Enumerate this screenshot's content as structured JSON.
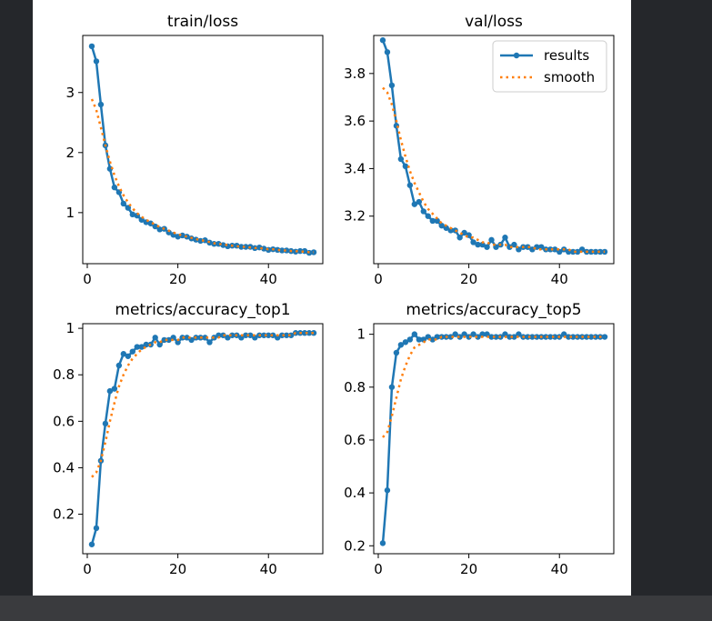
{
  "colors": {
    "results": "#1f77b4",
    "smooth": "#ff7f0e"
  },
  "chart_data": [
    {
      "type": "line",
      "title": "train/loss",
      "xlim": [
        -1,
        52
      ],
      "ylim": [
        0.15,
        3.95
      ],
      "xticks": [
        0,
        20,
        40
      ],
      "yticks": [
        1,
        2,
        3
      ],
      "legend": null,
      "series": [
        {
          "name": "results",
          "x": [
            1,
            2,
            3,
            4,
            5,
            6,
            7,
            8,
            9,
            10,
            11,
            12,
            13,
            14,
            15,
            16,
            17,
            18,
            19,
            20,
            21,
            22,
            23,
            24,
            25,
            26,
            27,
            28,
            29,
            30,
            31,
            32,
            33,
            34,
            35,
            36,
            37,
            38,
            39,
            40,
            41,
            42,
            43,
            44,
            45,
            46,
            47,
            48,
            49,
            50
          ],
          "y": [
            3.77,
            3.52,
            2.8,
            2.12,
            1.73,
            1.42,
            1.34,
            1.15,
            1.08,
            0.97,
            0.95,
            0.88,
            0.84,
            0.82,
            0.77,
            0.72,
            0.73,
            0.67,
            0.63,
            0.6,
            0.62,
            0.6,
            0.57,
            0.55,
            0.53,
            0.54,
            0.5,
            0.48,
            0.48,
            0.46,
            0.44,
            0.45,
            0.45,
            0.43,
            0.43,
            0.43,
            0.41,
            0.42,
            0.4,
            0.38,
            0.39,
            0.38,
            0.37,
            0.37,
            0.36,
            0.35,
            0.36,
            0.36,
            0.33,
            0.34
          ]
        },
        {
          "name": "smooth",
          "x": [
            1,
            2,
            3,
            4,
            5,
            6,
            7,
            8,
            9,
            10,
            11,
            12,
            13,
            14,
            15,
            16,
            17,
            18,
            19,
            20,
            21,
            22,
            23,
            24,
            25,
            26,
            27,
            28,
            29,
            30,
            31,
            32,
            33,
            34,
            35,
            36,
            37,
            38,
            39,
            40,
            41,
            42,
            43,
            44,
            45,
            46,
            47,
            48,
            49,
            50
          ],
          "y": [
            2.89,
            2.71,
            2.42,
            2.12,
            1.85,
            1.62,
            1.44,
            1.29,
            1.17,
            1.07,
            0.99,
            0.93,
            0.88,
            0.84,
            0.8,
            0.76,
            0.73,
            0.7,
            0.67,
            0.64,
            0.62,
            0.6,
            0.58,
            0.56,
            0.54,
            0.53,
            0.51,
            0.49,
            0.48,
            0.47,
            0.46,
            0.45,
            0.44,
            0.43,
            0.43,
            0.42,
            0.41,
            0.41,
            0.4,
            0.39,
            0.39,
            0.38,
            0.37,
            0.37,
            0.36,
            0.36,
            0.35,
            0.35,
            0.34,
            0.34
          ]
        }
      ]
    },
    {
      "type": "line",
      "title": "val/loss",
      "xlim": [
        -1,
        52
      ],
      "ylim": [
        3.0,
        3.96
      ],
      "xticks": [
        0,
        20,
        40
      ],
      "yticks": [
        3.2,
        3.4,
        3.6,
        3.8
      ],
      "legend": "top-right",
      "series": [
        {
          "name": "results",
          "x": [
            1,
            2,
            3,
            4,
            5,
            6,
            7,
            8,
            9,
            10,
            11,
            12,
            13,
            14,
            15,
            16,
            17,
            18,
            19,
            20,
            21,
            22,
            23,
            24,
            25,
            26,
            27,
            28,
            29,
            30,
            31,
            32,
            33,
            34,
            35,
            36,
            37,
            38,
            39,
            40,
            41,
            42,
            43,
            44,
            45,
            46,
            47,
            48,
            49,
            50
          ],
          "y": [
            3.94,
            3.89,
            3.75,
            3.58,
            3.44,
            3.41,
            3.33,
            3.25,
            3.26,
            3.22,
            3.2,
            3.18,
            3.18,
            3.16,
            3.15,
            3.14,
            3.14,
            3.11,
            3.13,
            3.12,
            3.09,
            3.08,
            3.08,
            3.07,
            3.1,
            3.07,
            3.08,
            3.11,
            3.07,
            3.08,
            3.06,
            3.07,
            3.07,
            3.06,
            3.07,
            3.07,
            3.06,
            3.06,
            3.06,
            3.05,
            3.06,
            3.05,
            3.05,
            3.05,
            3.06,
            3.05,
            3.05,
            3.05,
            3.05,
            3.05
          ]
        },
        {
          "name": "smooth",
          "x": [
            1,
            2,
            3,
            4,
            5,
            6,
            7,
            8,
            9,
            10,
            11,
            12,
            13,
            14,
            15,
            16,
            17,
            18,
            19,
            20,
            21,
            22,
            23,
            24,
            25,
            26,
            27,
            28,
            29,
            30,
            31,
            32,
            33,
            34,
            35,
            36,
            37,
            38,
            39,
            40,
            41,
            42,
            43,
            44,
            45,
            46,
            47,
            48,
            49,
            50
          ],
          "y": [
            3.74,
            3.72,
            3.67,
            3.6,
            3.52,
            3.45,
            3.39,
            3.34,
            3.3,
            3.26,
            3.23,
            3.21,
            3.19,
            3.17,
            3.16,
            3.15,
            3.14,
            3.13,
            3.12,
            3.11,
            3.11,
            3.1,
            3.09,
            3.09,
            3.08,
            3.08,
            3.08,
            3.08,
            3.07,
            3.07,
            3.07,
            3.07,
            3.07,
            3.07,
            3.06,
            3.06,
            3.06,
            3.06,
            3.06,
            3.06,
            3.06,
            3.06,
            3.05,
            3.05,
            3.05,
            3.05,
            3.05,
            3.05,
            3.05,
            3.05
          ]
        }
      ]
    },
    {
      "type": "line",
      "title": "metrics/accuracy_top1",
      "xlim": [
        -1,
        52
      ],
      "ylim": [
        0.03,
        1.02
      ],
      "xticks": [
        0,
        20,
        40
      ],
      "yticks": [
        0.2,
        0.4,
        0.6,
        0.8,
        1.0
      ],
      "legend": null,
      "series": [
        {
          "name": "results",
          "x": [
            1,
            2,
            3,
            4,
            5,
            6,
            7,
            8,
            9,
            10,
            11,
            12,
            13,
            14,
            15,
            16,
            17,
            18,
            19,
            20,
            21,
            22,
            23,
            24,
            25,
            26,
            27,
            28,
            29,
            30,
            31,
            32,
            33,
            34,
            35,
            36,
            37,
            38,
            39,
            40,
            41,
            42,
            43,
            44,
            45,
            46,
            47,
            48,
            49,
            50
          ],
          "y": [
            0.07,
            0.14,
            0.43,
            0.59,
            0.73,
            0.74,
            0.84,
            0.89,
            0.88,
            0.9,
            0.92,
            0.92,
            0.93,
            0.93,
            0.96,
            0.93,
            0.95,
            0.95,
            0.96,
            0.94,
            0.96,
            0.96,
            0.95,
            0.96,
            0.96,
            0.96,
            0.94,
            0.96,
            0.97,
            0.97,
            0.96,
            0.97,
            0.97,
            0.96,
            0.97,
            0.97,
            0.96,
            0.97,
            0.97,
            0.97,
            0.97,
            0.96,
            0.97,
            0.97,
            0.97,
            0.98,
            0.98,
            0.98,
            0.98,
            0.98
          ]
        },
        {
          "name": "smooth",
          "x": [
            1,
            2,
            3,
            4,
            5,
            6,
            7,
            8,
            9,
            10,
            11,
            12,
            13,
            14,
            15,
            16,
            17,
            18,
            19,
            20,
            21,
            22,
            23,
            24,
            25,
            26,
            27,
            28,
            29,
            30,
            31,
            32,
            33,
            34,
            35,
            36,
            37,
            38,
            39,
            40,
            41,
            42,
            43,
            44,
            45,
            46,
            47,
            48,
            49,
            50
          ],
          "y": [
            0.36,
            0.38,
            0.43,
            0.51,
            0.6,
            0.68,
            0.75,
            0.8,
            0.84,
            0.87,
            0.89,
            0.91,
            0.92,
            0.93,
            0.94,
            0.94,
            0.95,
            0.95,
            0.95,
            0.95,
            0.96,
            0.96,
            0.96,
            0.96,
            0.96,
            0.96,
            0.96,
            0.96,
            0.96,
            0.97,
            0.97,
            0.97,
            0.97,
            0.97,
            0.97,
            0.97,
            0.97,
            0.97,
            0.97,
            0.97,
            0.97,
            0.97,
            0.97,
            0.97,
            0.97,
            0.98,
            0.98,
            0.98,
            0.98,
            0.98
          ]
        }
      ]
    },
    {
      "type": "line",
      "title": "metrics/accuracy_top5",
      "xlim": [
        -1,
        52
      ],
      "ylim": [
        0.17,
        1.04
      ],
      "xticks": [
        0,
        20,
        40
      ],
      "yticks": [
        0.2,
        0.4,
        0.6,
        0.8,
        1.0
      ],
      "legend": null,
      "series": [
        {
          "name": "results",
          "x": [
            1,
            2,
            3,
            4,
            5,
            6,
            7,
            8,
            9,
            10,
            11,
            12,
            13,
            14,
            15,
            16,
            17,
            18,
            19,
            20,
            21,
            22,
            23,
            24,
            25,
            26,
            27,
            28,
            29,
            30,
            31,
            32,
            33,
            34,
            35,
            36,
            37,
            38,
            39,
            40,
            41,
            42,
            43,
            44,
            45,
            46,
            47,
            48,
            49,
            50
          ],
          "y": [
            0.21,
            0.41,
            0.8,
            0.93,
            0.96,
            0.97,
            0.98,
            1.0,
            0.98,
            0.98,
            0.99,
            0.98,
            0.99,
            0.99,
            0.99,
            0.99,
            1.0,
            0.99,
            1.0,
            0.99,
            1.0,
            0.99,
            1.0,
            1.0,
            0.99,
            0.99,
            0.99,
            1.0,
            0.99,
            0.99,
            1.0,
            0.99,
            0.99,
            0.99,
            0.99,
            0.99,
            0.99,
            0.99,
            0.99,
            0.99,
            1.0,
            0.99,
            0.99,
            0.99,
            0.99,
            0.99,
            0.99,
            0.99,
            0.99,
            0.99
          ]
        },
        {
          "name": "smooth",
          "x": [
            1,
            2,
            3,
            4,
            5,
            6,
            7,
            8,
            9,
            10,
            11,
            12,
            13,
            14,
            15,
            16,
            17,
            18,
            19,
            20,
            21,
            22,
            23,
            24,
            25,
            26,
            27,
            28,
            29,
            30,
            31,
            32,
            33,
            34,
            35,
            36,
            37,
            38,
            39,
            40,
            41,
            42,
            43,
            44,
            45,
            46,
            47,
            48,
            49,
            50
          ],
          "y": [
            0.61,
            0.63,
            0.69,
            0.76,
            0.83,
            0.88,
            0.92,
            0.95,
            0.96,
            0.97,
            0.98,
            0.98,
            0.98,
            0.99,
            0.99,
            0.99,
            0.99,
            0.99,
            0.99,
            0.99,
            0.99,
            0.99,
            0.99,
            0.99,
            0.99,
            0.99,
            0.99,
            0.99,
            0.99,
            0.99,
            0.99,
            0.99,
            0.99,
            0.99,
            0.99,
            0.99,
            0.99,
            0.99,
            0.99,
            0.99,
            0.99,
            0.99,
            0.99,
            0.99,
            0.99,
            0.99,
            0.99,
            0.99,
            0.99,
            0.99
          ]
        }
      ]
    }
  ]
}
